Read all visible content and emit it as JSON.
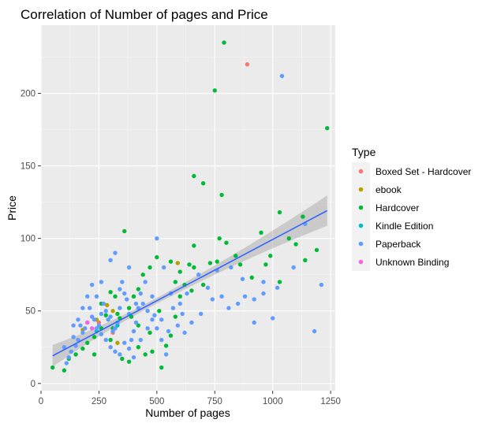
{
  "chart_data": {
    "type": "scatter",
    "title": "Correlation of Number of pages and Price",
    "xlabel": "Number of pages",
    "ylabel": "Price",
    "xlim": [
      0,
      1270
    ],
    "ylim": [
      -5,
      247
    ],
    "xticks": [
      {
        "value": 0,
        "label": "0"
      },
      {
        "value": 250,
        "label": "250"
      },
      {
        "value": 500,
        "label": "500"
      },
      {
        "value": 750,
        "label": "750"
      },
      {
        "value": 1000,
        "label": "1000"
      },
      {
        "value": 1250,
        "label": "1250"
      }
    ],
    "yticks": [
      {
        "value": 0,
        "label": "0"
      },
      {
        "value": 50,
        "label": "50"
      },
      {
        "value": 100,
        "label": "100"
      },
      {
        "value": 150,
        "label": "150"
      },
      {
        "value": 200,
        "label": "200"
      }
    ],
    "grid": true,
    "legend": {
      "title": "Type",
      "placement": "right"
    },
    "trend": {
      "method": "linear",
      "x_range": [
        50,
        1235
      ],
      "intercept": 14.8,
      "slope": 0.0845,
      "band_start": [
        12,
        27
      ],
      "band_end": [
        109,
        130
      ],
      "color": "#3366ff"
    },
    "series": [
      {
        "name": "Boxed Set - Hardcover",
        "color": "#f8766d",
        "points": [
          [
            890,
            220
          ],
          [
            250,
            42
          ],
          [
            310,
            35
          ]
        ]
      },
      {
        "name": "ebook",
        "color": "#b79f00",
        "points": [
          [
            285,
            54
          ],
          [
            180,
            37
          ],
          [
            330,
            28
          ],
          [
            590,
            83
          ],
          [
            310,
            50
          ],
          [
            240,
            44
          ]
        ]
      },
      {
        "name": "Hardcover",
        "color": "#00ba38",
        "points": [
          [
            790,
            235
          ],
          [
            750,
            202
          ],
          [
            1235,
            176
          ],
          [
            660,
            143
          ],
          [
            780,
            130
          ],
          [
            700,
            138
          ],
          [
            1030,
            118
          ],
          [
            1130,
            115
          ],
          [
            1100,
            96
          ],
          [
            1140,
            85
          ],
          [
            1190,
            92
          ],
          [
            950,
            104
          ],
          [
            1030,
            70
          ],
          [
            970,
            82
          ],
          [
            860,
            82
          ],
          [
            800,
            97
          ],
          [
            770,
            100
          ],
          [
            730,
            83
          ],
          [
            660,
            95
          ],
          [
            640,
            82
          ],
          [
            620,
            68
          ],
          [
            580,
            70
          ],
          [
            600,
            77
          ],
          [
            560,
            84
          ],
          [
            500,
            87
          ],
          [
            470,
            80
          ],
          [
            440,
            75
          ],
          [
            420,
            65
          ],
          [
            400,
            60
          ],
          [
            360,
            105
          ],
          [
            380,
            52
          ],
          [
            340,
            45
          ],
          [
            320,
            60
          ],
          [
            300,
            63
          ],
          [
            280,
            47
          ],
          [
            260,
            38
          ],
          [
            230,
            32
          ],
          [
            200,
            28
          ],
          [
            180,
            24
          ],
          [
            150,
            20
          ],
          [
            120,
            17
          ],
          [
            100,
            9
          ],
          [
            50,
            11
          ],
          [
            300,
            30
          ],
          [
            350,
            17
          ],
          [
            380,
            15
          ],
          [
            420,
            25
          ],
          [
            450,
            20
          ],
          [
            480,
            22
          ],
          [
            520,
            11
          ],
          [
            540,
            26
          ],
          [
            560,
            33
          ],
          [
            580,
            46
          ],
          [
            510,
            50
          ],
          [
            660,
            80
          ],
          [
            700,
            68
          ],
          [
            760,
            84
          ],
          [
            840,
            88
          ],
          [
            910,
            73
          ],
          [
            1070,
            100
          ],
          [
            990,
            88
          ],
          [
            600,
            60
          ],
          [
            650,
            64
          ],
          [
            260,
            55
          ],
          [
            330,
            48
          ],
          [
            470,
            35
          ],
          [
            420,
            40
          ],
          [
            390,
            46
          ],
          [
            310,
            38
          ],
          [
            230,
            20
          ]
        ]
      },
      {
        "name": "Kindle Edition",
        "color": "#00bfc4",
        "points": [
          [
            240,
            36
          ],
          [
            330,
            40
          ]
        ]
      },
      {
        "name": "Paperback",
        "color": "#619cff",
        "points": [
          [
            1040,
            212
          ],
          [
            1180,
            36
          ],
          [
            1210,
            68
          ],
          [
            1000,
            45
          ],
          [
            960,
            62
          ],
          [
            920,
            42
          ],
          [
            880,
            60
          ],
          [
            850,
            55
          ],
          [
            810,
            52
          ],
          [
            780,
            60
          ],
          [
            740,
            58
          ],
          [
            690,
            48
          ],
          [
            650,
            42
          ],
          [
            620,
            35
          ],
          [
            590,
            40
          ],
          [
            550,
            36
          ],
          [
            520,
            44
          ],
          [
            490,
            47
          ],
          [
            460,
            50
          ],
          [
            440,
            55
          ],
          [
            420,
            52
          ],
          [
            410,
            42
          ],
          [
            400,
            36
          ],
          [
            390,
            30
          ],
          [
            380,
            48
          ],
          [
            370,
            58
          ],
          [
            360,
            62
          ],
          [
            350,
            70
          ],
          [
            340,
            52
          ],
          [
            330,
            42
          ],
          [
            320,
            38
          ],
          [
            310,
            36
          ],
          [
            300,
            46
          ],
          [
            290,
            44
          ],
          [
            280,
            50
          ],
          [
            270,
            55
          ],
          [
            260,
            48
          ],
          [
            250,
            40
          ],
          [
            240,
            38
          ],
          [
            230,
            44
          ],
          [
            220,
            46
          ],
          [
            210,
            52
          ],
          [
            200,
            42
          ],
          [
            190,
            38
          ],
          [
            180,
            35
          ],
          [
            170,
            40
          ],
          [
            160,
            30
          ],
          [
            150,
            26
          ],
          [
            140,
            32
          ],
          [
            130,
            22
          ],
          [
            120,
            18
          ],
          [
            110,
            14
          ],
          [
            100,
            25
          ],
          [
            240,
            60
          ],
          [
            260,
            70
          ],
          [
            300,
            85
          ],
          [
            320,
            90
          ],
          [
            340,
            65
          ],
          [
            380,
            80
          ],
          [
            410,
            55
          ],
          [
            430,
            62
          ],
          [
            450,
            70
          ],
          [
            480,
            60
          ],
          [
            500,
            100
          ],
          [
            530,
            80
          ],
          [
            560,
            62
          ],
          [
            600,
            55
          ],
          [
            630,
            62
          ],
          [
            680,
            75
          ],
          [
            720,
            66
          ],
          [
            760,
            78
          ],
          [
            820,
            80
          ],
          [
            870,
            72
          ],
          [
            920,
            58
          ],
          [
            960,
            70
          ],
          [
            1020,
            66
          ],
          [
            1090,
            80
          ],
          [
            1140,
            110
          ],
          [
            200,
            60
          ],
          [
            220,
            68
          ],
          [
            180,
            52
          ],
          [
            160,
            44
          ],
          [
            140,
            40
          ],
          [
            260,
            34
          ],
          [
            280,
            30
          ],
          [
            300,
            25
          ],
          [
            320,
            22
          ],
          [
            340,
            20
          ],
          [
            360,
            28
          ],
          [
            380,
            24
          ],
          [
            400,
            18
          ],
          [
            430,
            30
          ],
          [
            460,
            38
          ],
          [
            480,
            44
          ],
          [
            500,
            38
          ],
          [
            520,
            30
          ],
          [
            540,
            20
          ],
          [
            570,
            52
          ],
          [
            610,
            48
          ]
        ]
      },
      {
        "name": "Unknown Binding",
        "color": "#f564e3",
        "points": [
          [
            220,
            38
          ],
          [
            200,
            42
          ]
        ]
      }
    ]
  }
}
